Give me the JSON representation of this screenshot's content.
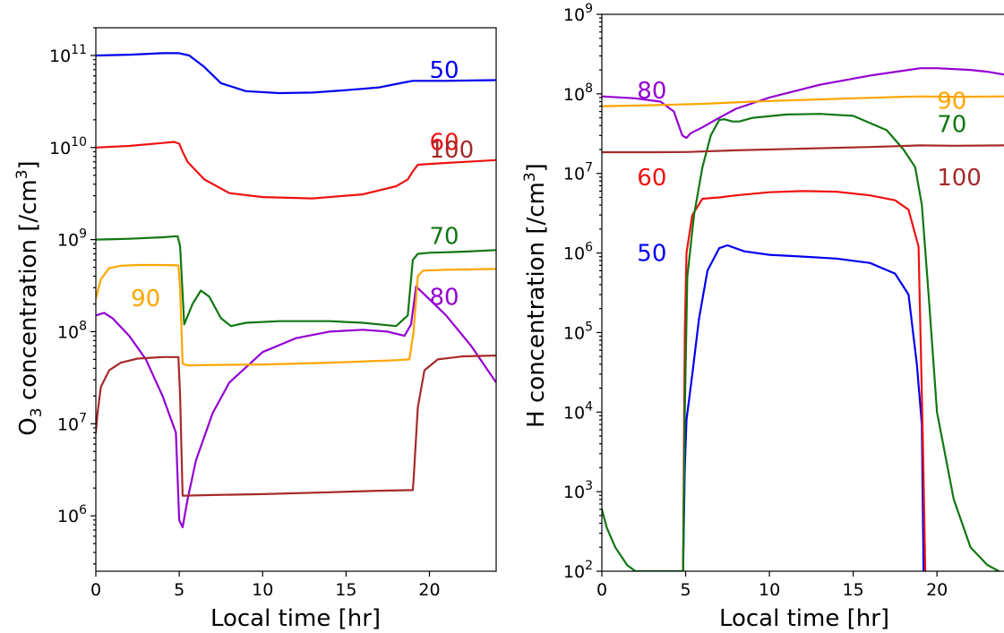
{
  "chart_data": [
    {
      "type": "line",
      "id": "left",
      "xlabel": "Local time [hr]",
      "ylabel_base": "O",
      "ylabel_sub": "3",
      "ylabel_mid": " concentration [/cm",
      "ylabel_sup": "3",
      "ylabel_end": "]",
      "xlim": [
        0,
        24
      ],
      "ylim": [
        250000,
        200000000000
      ],
      "yscale": "log",
      "grid": false,
      "xticks": [
        0,
        5,
        10,
        15,
        20
      ],
      "xtick_labels": [
        "0",
        "5",
        "10",
        "15",
        "20"
      ],
      "yticks": [
        {
          "base": "10",
          "exp": "6",
          "value": 1000000
        },
        {
          "base": "10",
          "exp": "7",
          "value": 10000000
        },
        {
          "base": "10",
          "exp": "8",
          "value": 100000000
        },
        {
          "base": "10",
          "exp": "9",
          "value": 1000000000
        },
        {
          "base": "10",
          "exp": "10",
          "value": 10000000000
        },
        {
          "base": "10",
          "exp": "11",
          "value": 100000000000
        }
      ],
      "series": [
        {
          "name": "50",
          "color": "#0000ee",
          "label_x": 20,
          "label_y": 70000000000,
          "x": [
            0,
            2,
            4,
            5,
            5.6,
            6.5,
            7.5,
            9,
            11,
            13,
            15,
            17,
            18.5,
            19,
            21,
            24
          ],
          "y": [
            100000000000,
            102000000000,
            106000000000,
            106000000000,
            100000000000,
            75000000000,
            50000000000,
            41000000000,
            39000000000,
            39500000000,
            42000000000,
            45000000000,
            51000000000,
            53000000000,
            53000000000,
            54000000000
          ]
        },
        {
          "name": "60",
          "color": "#ee1111",
          "label_x": 20,
          "label_y": 11500000000,
          "x": [
            0,
            2,
            4,
            4.7,
            5,
            5.2,
            5.5,
            6.5,
            8,
            10,
            13,
            16,
            18,
            18.7,
            19,
            19.3,
            21,
            24
          ],
          "y": [
            10000000000,
            10400000000,
            11200000000,
            11500000000,
            11000000000,
            9000000000,
            7000000000,
            4500000000,
            3200000000,
            2900000000,
            2800000000,
            3100000000,
            3800000000,
            4500000000,
            5500000000,
            6500000000,
            6800000000,
            7300000000
          ]
        },
        {
          "name": "70",
          "color": "#117711",
          "label_x": 20,
          "label_y": 1100000000,
          "x": [
            0,
            2,
            4,
            4.9,
            5.05,
            5.3,
            5.8,
            6.3,
            6.8,
            7.5,
            8.1,
            9,
            11,
            14,
            16,
            18,
            18.7,
            19,
            19.3,
            20,
            22,
            24
          ],
          "y": [
            1000000000,
            1020000000,
            1060000000,
            1090000000,
            850000000,
            120000000,
            200000000,
            280000000,
            240000000,
            140000000,
            115000000,
            125000000,
            130000000,
            130000000,
            125000000,
            115000000,
            150000000,
            600000000,
            700000000,
            720000000,
            740000000,
            770000000
          ]
        },
        {
          "name": "80",
          "color": "#9400d3",
          "label_x": 20,
          "label_y": 240000000,
          "x": [
            0,
            0.5,
            1,
            2,
            3,
            4,
            4.8,
            5,
            5.2,
            5.5,
            6,
            7,
            8,
            10,
            12,
            14,
            16,
            17.5,
            18.5,
            18.9,
            19.2,
            21,
            22.5,
            24
          ],
          "y": [
            150000000,
            160000000,
            140000000,
            90000000,
            50000000,
            20000000,
            8000000,
            900000,
            750000,
            1500000,
            4000000,
            13000000,
            28000000,
            60000000,
            85000000,
            100000000,
            105000000,
            100000000,
            90000000,
            120000000,
            310000000,
            150000000,
            70000000,
            28000000
          ]
        },
        {
          "name": "90",
          "color": "#ffa500",
          "label_x": 2.1,
          "label_y": 230000000,
          "x": [
            0,
            0.3,
            0.8,
            1.5,
            2.5,
            4,
            4.95,
            5.05,
            5.2,
            5.5,
            7,
            10,
            14,
            18,
            18.8,
            19.05,
            19.3,
            19.6,
            21,
            24
          ],
          "y": [
            230000000,
            370000000,
            490000000,
            520000000,
            530000000,
            530000000,
            525000000,
            300000000,
            45000000,
            43000000,
            43500000,
            44000000,
            46000000,
            49000000,
            50000000,
            100000000,
            400000000,
            460000000,
            470000000,
            480000000
          ]
        },
        {
          "name": "100",
          "color": "#a52a2a",
          "label_x": 20,
          "label_y": 9500000000,
          "x": [
            0,
            0.1,
            0.3,
            0.8,
            1.5,
            2.5,
            4,
            4.95,
            5.05,
            5.2,
            7,
            10,
            14,
            17,
            19,
            19.05,
            19.3,
            19.7,
            20.5,
            22,
            24
          ],
          "y": [
            8000000,
            13000000,
            25000000,
            38000000,
            46000000,
            51000000,
            53000000,
            53000000,
            20000000,
            1650000,
            1680000,
            1720000,
            1800000,
            1870000,
            1900000,
            2500000,
            15000000,
            38000000,
            50000000,
            54000000,
            55000000
          ]
        }
      ]
    },
    {
      "type": "line",
      "id": "right",
      "xlabel": "Local time [hr]",
      "ylabel_base": "H concentration [/cm",
      "ylabel_sup": "3",
      "ylabel_end": "]",
      "xlim": [
        0,
        24
      ],
      "ylim": [
        100,
        1000000000
      ],
      "yscale": "log",
      "grid": false,
      "xticks": [
        0,
        5,
        10,
        15,
        20
      ],
      "xtick_labels": [
        "0",
        "5",
        "10",
        "15",
        "20"
      ],
      "yticks": [
        {
          "base": "10",
          "exp": "2",
          "value": 100
        },
        {
          "base": "10",
          "exp": "3",
          "value": 1000
        },
        {
          "base": "10",
          "exp": "4",
          "value": 10000
        },
        {
          "base": "10",
          "exp": "5",
          "value": 100000
        },
        {
          "base": "10",
          "exp": "6",
          "value": 1000000
        },
        {
          "base": "10",
          "exp": "7",
          "value": 10000000
        },
        {
          "base": "10",
          "exp": "8",
          "value": 100000000
        },
        {
          "base": "10",
          "exp": "9",
          "value": 1000000000
        }
      ],
      "series": [
        {
          "name": "50",
          "color": "#0000ee",
          "label_x": 2.1,
          "label_y": 1000000,
          "x": [
            4.85,
            4.95,
            5.05,
            5.4,
            5.8,
            6.3,
            7,
            7.5,
            8.5,
            10,
            12,
            14,
            16,
            17.5,
            18.3,
            18.8,
            19.1,
            19.2
          ],
          "y": [
            100,
            2000,
            8000,
            30000,
            150000,
            600000,
            1150000,
            1250000,
            1050000,
            950000,
            900000,
            850000,
            750000,
            550000,
            300000,
            40000,
            7000,
            100
          ]
        },
        {
          "name": "60",
          "color": "#ee1111",
          "label_x": 2.1,
          "label_y": 9000000,
          "x": [
            4.85,
            4.95,
            5.05,
            5.4,
            6,
            7,
            8,
            10,
            12,
            14,
            16,
            17.5,
            18.3,
            18.9,
            19.15,
            19.3
          ],
          "y": [
            100,
            100000,
            1000000,
            3000000,
            4800000,
            5000000,
            5300000,
            5800000,
            6000000,
            5900000,
            5300000,
            4600000,
            3500000,
            1200000,
            5000,
            100
          ]
        },
        {
          "name": "70",
          "color": "#117711",
          "label_x": 20,
          "label_y": 42000000,
          "x": [
            0,
            0.3,
            0.8,
            1.5,
            2,
            4.85,
            4.95,
            5.1,
            5.5,
            6,
            6.5,
            7,
            7.3,
            7.8,
            8.2,
            9,
            11,
            13,
            15,
            17,
            18,
            18.7,
            19.1,
            19.5,
            20,
            21,
            22,
            23,
            23.7
          ],
          "y": [
            600,
            350,
            200,
            120,
            100,
            100,
            10000,
            500000,
            3000000,
            12000000,
            30000000,
            47000000,
            48000000,
            45000000,
            45000000,
            50000000,
            55000000,
            56000000,
            53000000,
            35000000,
            20000000,
            12000000,
            4000000,
            300000,
            10000,
            800,
            200,
            120,
            100
          ]
        },
        {
          "name": "80",
          "color": "#9400d3",
          "label_x": 2.1,
          "label_y": 110000000,
          "x": [
            0,
            2,
            3.5,
            4.3,
            4.8,
            5.05,
            5.3,
            6,
            7,
            8,
            10,
            13,
            16,
            19,
            20,
            22,
            23,
            24
          ],
          "y": [
            93000000,
            88000000,
            80000000,
            60000000,
            30000000,
            28000000,
            32000000,
            38000000,
            50000000,
            65000000,
            90000000,
            130000000,
            170000000,
            210000000,
            210000000,
            200000000,
            190000000,
            175000000
          ]
        },
        {
          "name": "90",
          "color": "#ffa500",
          "label_x": 20,
          "label_y": 82000000,
          "x": [
            0,
            3,
            6,
            9,
            12,
            15,
            18,
            19,
            21,
            24
          ],
          "y": [
            70000000,
            72000000,
            75000000,
            80000000,
            84000000,
            88000000,
            92000000,
            93000000,
            92000000,
            93000000
          ]
        },
        {
          "name": "100",
          "color": "#a52a2a",
          "label_x": 20,
          "label_y": 9000000,
          "x": [
            0,
            3,
            5,
            8,
            12,
            16,
            19,
            21,
            24
          ],
          "y": [
            18500000,
            18500000,
            18600000,
            19500000,
            20500000,
            21500000,
            22500000,
            22300000,
            22500000
          ]
        }
      ]
    }
  ]
}
